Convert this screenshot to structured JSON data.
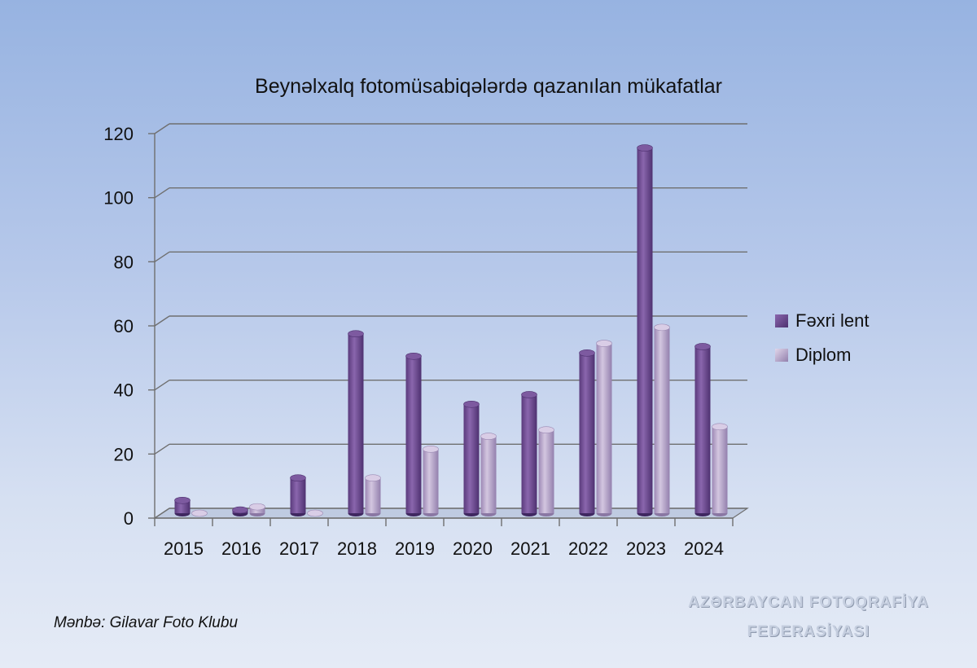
{
  "chart_data": {
    "type": "bar",
    "title": "Beynəlxalq fotomüsabiqələrdə qazanılan mükafatlar",
    "categories": [
      "2015",
      "2016",
      "2017",
      "2018",
      "2019",
      "2020",
      "2021",
      "2022",
      "2023",
      "2024"
    ],
    "series": [
      {
        "name": "Fəxri lent",
        "color": "#6d4a90",
        "values": [
          4,
          1,
          11,
          56,
          49,
          34,
          37,
          50,
          114,
          52
        ]
      },
      {
        "name": "Diplom",
        "color": "#b9a6cc",
        "values": [
          0,
          2,
          0,
          11,
          20,
          24,
          26,
          53,
          58,
          27
        ]
      }
    ],
    "ylim": [
      0,
      120
    ],
    "yticks": [
      0,
      20,
      40,
      60,
      80,
      100,
      120
    ],
    "xlabel": "",
    "ylabel": "",
    "grid": true,
    "legend_position": "right"
  },
  "source": "Mənbə: Gilavar Foto Klubu",
  "federation": {
    "line1": "AZƏRBAYCAN FOTOQRAFİYA",
    "line2": "FEDERASİYASI"
  }
}
